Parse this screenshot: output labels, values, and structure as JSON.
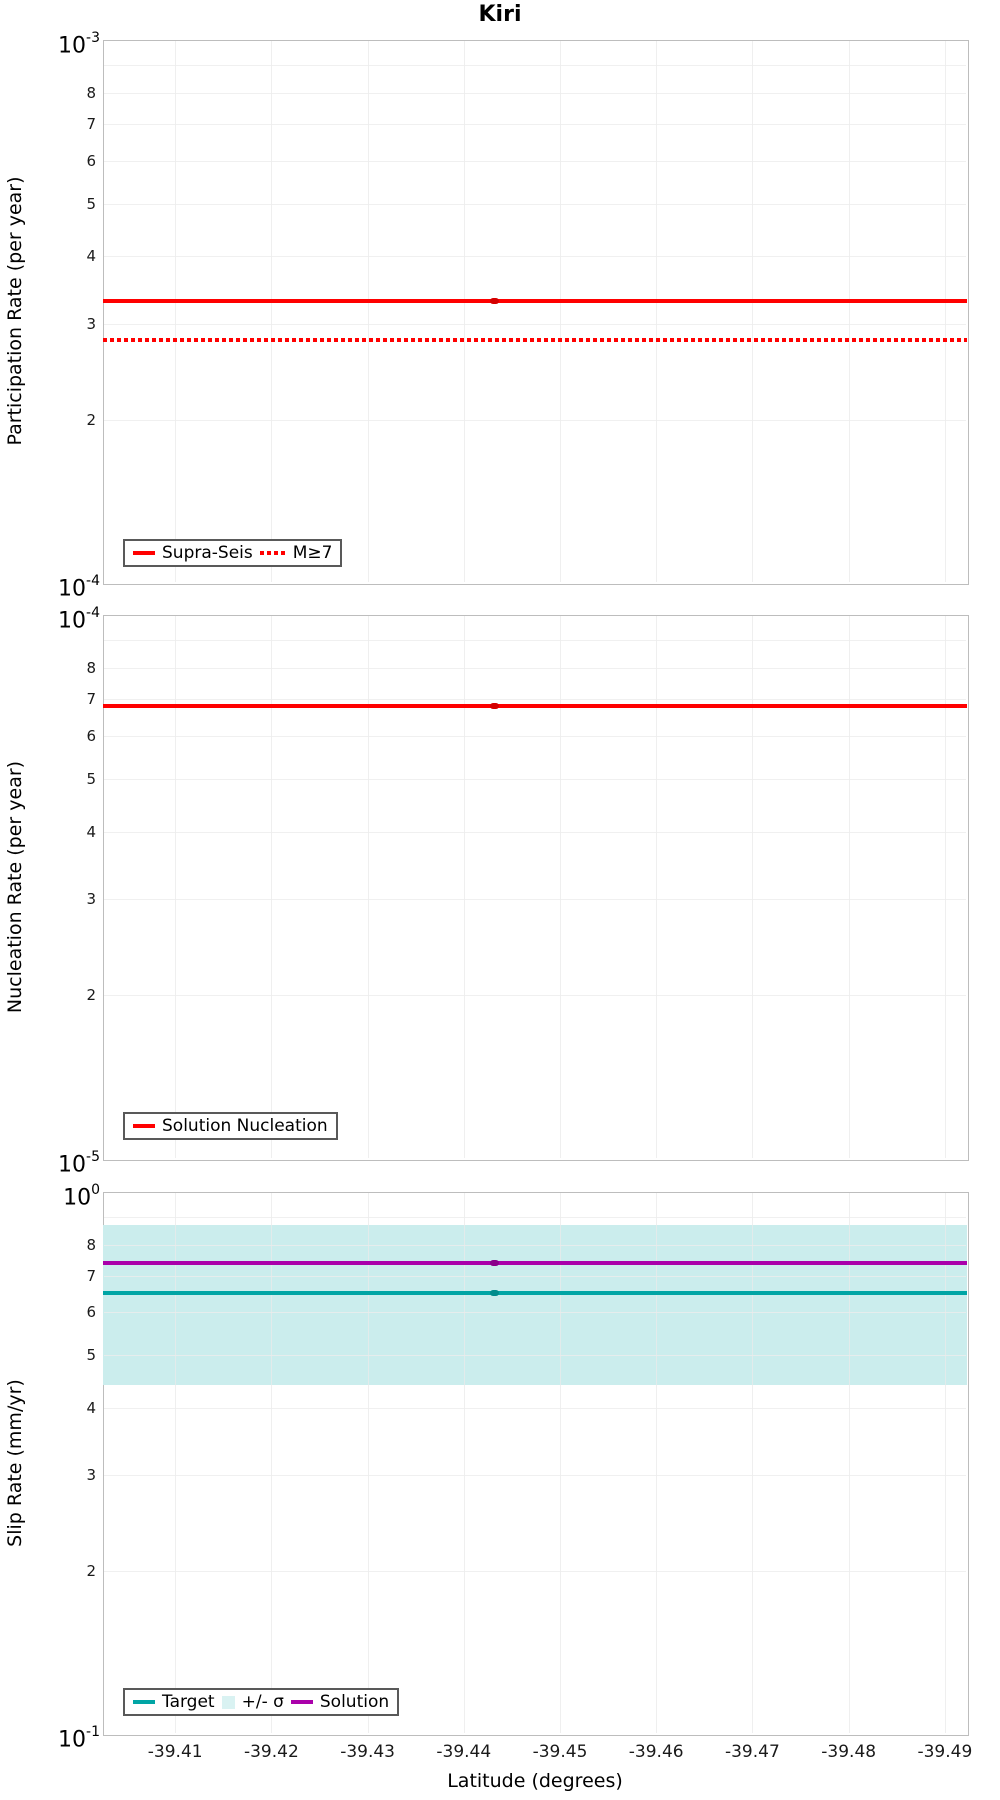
{
  "title": "Kiri",
  "xaxis": {
    "label": "Latitude (degrees)",
    "ticks": [
      "-39.41",
      "-39.42",
      "-39.43",
      "-39.44",
      "-39.45",
      "-39.46",
      "-39.47",
      "-39.48",
      "-39.49"
    ],
    "tick_values": [
      -39.41,
      -39.42,
      -39.43,
      -39.44,
      -39.45,
      -39.46,
      -39.47,
      -39.48,
      -39.49
    ],
    "xlim": [
      -39.4025,
      -39.4923
    ],
    "reversed": true
  },
  "colors": {
    "red": "#ff0000",
    "red_marker": "#d40000",
    "teal": "#00a5a5",
    "teal_marker": "#008c8c",
    "purple": "#aa00aa",
    "purple_marker": "#8a008a",
    "band_fill": "#cbeded",
    "band_legend_patch": "#d9f2f2",
    "gridline": "#ececec",
    "axis_border": "#bdbdbd"
  },
  "chart_data": [
    {
      "type": "line",
      "title": "Kiri",
      "ylabel": "Participation Rate (per year)",
      "yscale": "log",
      "ylim": [
        0.0001,
        0.001
      ],
      "decade_top": {
        "base": "10",
        "exp": "-3"
      },
      "decade_bottom": {
        "base": "10",
        "exp": "-4"
      },
      "yticks": [
        {
          "v": 9,
          "label": ""
        },
        {
          "v": 8,
          "label": "8"
        },
        {
          "v": 7,
          "label": "7"
        },
        {
          "v": 6,
          "label": "6"
        },
        {
          "v": 5,
          "label": "5"
        },
        {
          "v": 4,
          "label": "4"
        },
        {
          "v": 3,
          "label": "3"
        },
        {
          "v": 2,
          "label": "2"
        }
      ],
      "series": [
        {
          "name": "Supra-Seis",
          "style": "solid",
          "color": "#ff0000",
          "marker_color": "#d40000",
          "value": 0.00033
        },
        {
          "name": "M≥7",
          "style": "dotted",
          "color": "#ff0000",
          "value": 0.00028
        }
      ],
      "marker_latitude": -39.4432,
      "legend_position": "bottom-left",
      "grid": true
    },
    {
      "type": "line",
      "ylabel": "Nucleation Rate (per year)",
      "yscale": "log",
      "ylim": [
        1e-05,
        0.0001
      ],
      "decade_top": {
        "base": "10",
        "exp": "-4"
      },
      "decade_bottom": {
        "base": "10",
        "exp": "-5"
      },
      "yticks": [
        {
          "v": 9,
          "label": ""
        },
        {
          "v": 8,
          "label": "8"
        },
        {
          "v": 7,
          "label": "7"
        },
        {
          "v": 6,
          "label": "6"
        },
        {
          "v": 5,
          "label": "5"
        },
        {
          "v": 4,
          "label": "4"
        },
        {
          "v": 3,
          "label": "3"
        },
        {
          "v": 2,
          "label": "2"
        }
      ],
      "series": [
        {
          "name": "Solution Nucleation",
          "style": "solid",
          "color": "#ff0000",
          "marker_color": "#d40000",
          "value": 6.8e-05
        }
      ],
      "marker_latitude": -39.4432,
      "legend_position": "bottom-left",
      "grid": true
    },
    {
      "type": "line",
      "ylabel": "Slip Rate (mm/yr)",
      "yscale": "log",
      "ylim": [
        0.1,
        1.0
      ],
      "decade_top": {
        "base": "10",
        "exp": "0"
      },
      "decade_bottom": {
        "base": "10",
        "exp": "-1"
      },
      "yticks": [
        {
          "v": 9,
          "label": ""
        },
        {
          "v": 8,
          "label": "8"
        },
        {
          "v": 7,
          "label": "7"
        },
        {
          "v": 6,
          "label": "6"
        },
        {
          "v": 5,
          "label": "5"
        },
        {
          "v": 4,
          "label": "4"
        },
        {
          "v": 3,
          "label": "3"
        },
        {
          "v": 2,
          "label": "2"
        }
      ],
      "band": {
        "label": "+/- σ",
        "min": 0.44,
        "max": 0.87,
        "color": "#cbeded"
      },
      "series": [
        {
          "name": "Target",
          "style": "solid",
          "color": "#00a5a5",
          "marker_color": "#008c8c",
          "value": 0.65
        },
        {
          "name": "Solution",
          "style": "solid",
          "color": "#aa00aa",
          "marker_color": "#8a008a",
          "value": 0.74
        }
      ],
      "marker_latitude": -39.4432,
      "legend_position": "bottom-left",
      "grid": true
    }
  ]
}
